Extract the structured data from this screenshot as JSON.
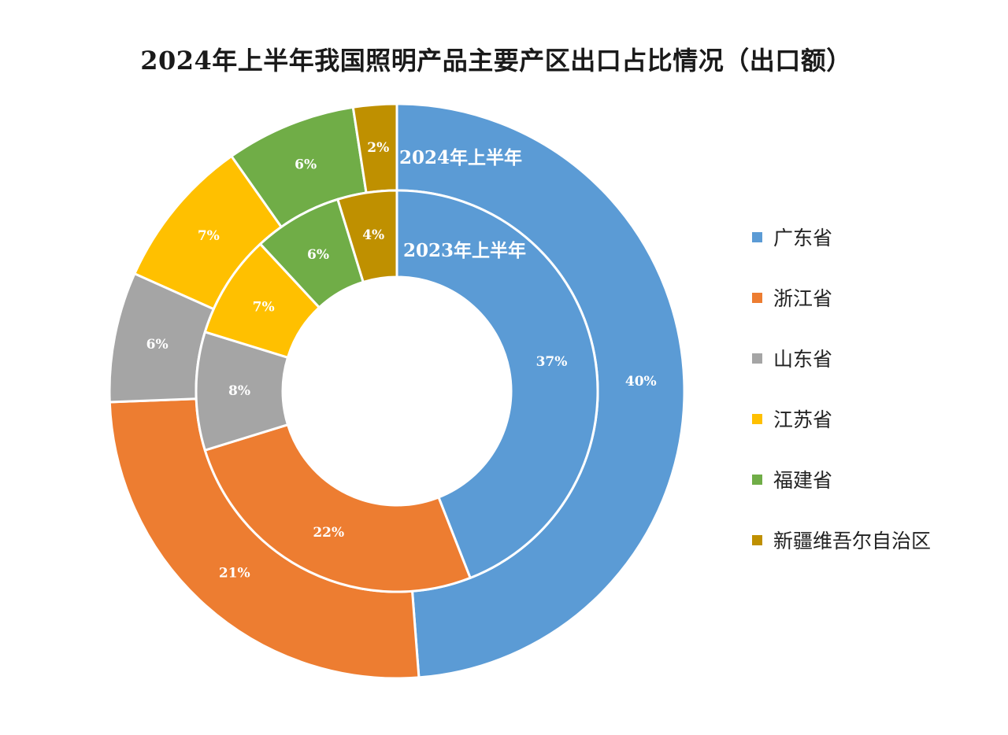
{
  "chart_data": {
    "type": "donut",
    "title": "2024年上半年我国照明产品主要产区出口占比情况（出口额）",
    "categories": [
      "广东省",
      "浙江省",
      "山东省",
      "江苏省",
      "福建省",
      "新疆维吾尔自治区"
    ],
    "colors": [
      "#5b9bd5",
      "#ed7d31",
      "#a5a5a5",
      "#ffc000",
      "#70ad47",
      "#bf9000"
    ],
    "series": [
      {
        "name": "2024年上半年",
        "ring": "outer",
        "values": [
          40,
          21,
          6,
          7,
          6,
          2
        ],
        "labels": [
          "40%",
          "21%",
          "6%",
          "7%",
          "6%",
          "2%"
        ]
      },
      {
        "name": "2023年上半年",
        "ring": "inner",
        "values": [
          37,
          22,
          8,
          7,
          6,
          4
        ],
        "labels": [
          "37%",
          "22%",
          "8%",
          "7%",
          "6%",
          "4%"
        ]
      }
    ],
    "legend_position": "right"
  }
}
